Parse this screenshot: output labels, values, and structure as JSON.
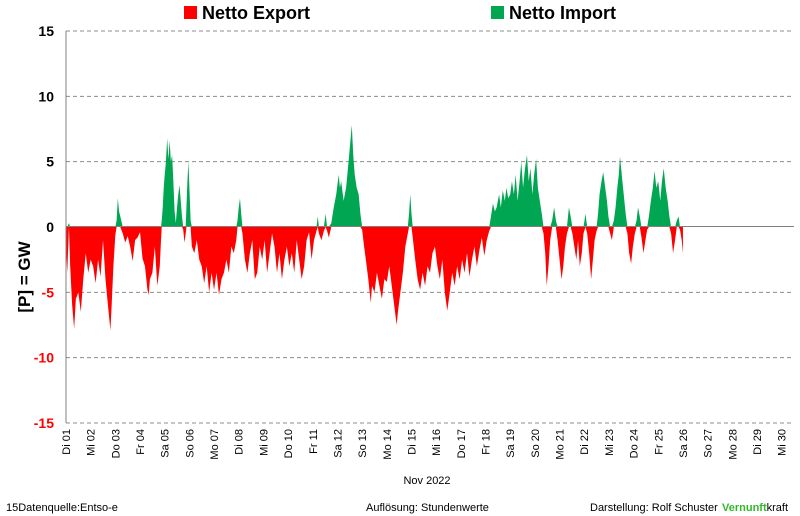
{
  "chart_data": {
    "type": "area",
    "title": "",
    "xlabel": "Nov 2022",
    "ylabel": "[P] = GW",
    "ylim": [
      -15,
      15
    ],
    "yticks": [
      15,
      10,
      5,
      0,
      -5,
      -10,
      -15
    ],
    "grid": true,
    "legend_position": "top",
    "colors": {
      "export": "#ff0000",
      "import": "#00a651",
      "negative_tick": "#ff0000",
      "positive_tick": "#000000"
    },
    "categories": [
      "Di 01",
      "Mi 02",
      "Do 03",
      "Fr 04",
      "Sa 05",
      "So 06",
      "Mo 07",
      "Di 08",
      "Mi 09",
      "Do 10",
      "Fr 11",
      "Sa 12",
      "So 13",
      "Mo 14",
      "Di 15",
      "Mi 16",
      "Do 17",
      "Fr 18",
      "Sa 19",
      "So 20",
      "Mo 21",
      "Di 22",
      "Mi 23",
      "Do 24",
      "Fr 25",
      "Sa 26",
      "So 27",
      "Mo 28",
      "Di 29",
      "Mi 30"
    ],
    "series": [
      {
        "name": "Netto Export",
        "role": "negative"
      },
      {
        "name": "Netto Import",
        "role": "positive"
      }
    ],
    "x_unit": "day of November 2022 (hourly resolution, 1.0 = 00:00 Nov 1)",
    "values": [
      [
        1.0,
        -1.5
      ],
      [
        1.05,
        -3.5
      ],
      [
        1.12,
        0.3
      ],
      [
        1.17,
        -3.0
      ],
      [
        1.25,
        -6.0
      ],
      [
        1.33,
        -7.8
      ],
      [
        1.4,
        -5.5
      ],
      [
        1.5,
        -5.0
      ],
      [
        1.6,
        -6.5
      ],
      [
        1.7,
        -4.0
      ],
      [
        1.8,
        -2.0
      ],
      [
        1.9,
        -3.5
      ],
      [
        2.0,
        -2.5
      ],
      [
        2.1,
        -3.0
      ],
      [
        2.2,
        -4.3
      ],
      [
        2.3,
        -2.5
      ],
      [
        2.4,
        -3.8
      ],
      [
        2.5,
        -1.0
      ],
      [
        2.6,
        -4.0
      ],
      [
        2.7,
        -6.0
      ],
      [
        2.8,
        -7.9
      ],
      [
        2.85,
        -6.0
      ],
      [
        2.92,
        -3.0
      ],
      [
        3.0,
        -0.6
      ],
      [
        3.05,
        0.5
      ],
      [
        3.1,
        2.2
      ],
      [
        3.15,
        1.2
      ],
      [
        3.2,
        0.8
      ],
      [
        3.3,
        -0.5
      ],
      [
        3.4,
        -1.2
      ],
      [
        3.5,
        -0.7
      ],
      [
        3.6,
        -1.5
      ],
      [
        3.7,
        -2.6
      ],
      [
        3.8,
        -1.0
      ],
      [
        3.9,
        -0.8
      ],
      [
        4.0,
        -0.4
      ],
      [
        4.1,
        -2.4
      ],
      [
        4.2,
        -3.0
      ],
      [
        4.3,
        -4.8
      ],
      [
        4.35,
        -5.2
      ],
      [
        4.4,
        -4.0
      ],
      [
        4.5,
        -3.5
      ],
      [
        4.6,
        -1.5
      ],
      [
        4.7,
        -4.5
      ],
      [
        4.8,
        -3.0
      ],
      [
        4.85,
        -1.0
      ],
      [
        4.88,
        0.5
      ],
      [
        4.92,
        1.5
      ],
      [
        4.96,
        3.0
      ],
      [
        5.0,
        4.0
      ],
      [
        5.05,
        5.0
      ],
      [
        5.1,
        6.8
      ],
      [
        5.15,
        5.2
      ],
      [
        5.2,
        6.6
      ],
      [
        5.25,
        5.0
      ],
      [
        5.3,
        5.5
      ],
      [
        5.35,
        3.5
      ],
      [
        5.4,
        1.2
      ],
      [
        5.45,
        0.3
      ],
      [
        5.5,
        1.5
      ],
      [
        5.55,
        2.5
      ],
      [
        5.6,
        3.2
      ],
      [
        5.65,
        2.0
      ],
      [
        5.7,
        0.8
      ],
      [
        5.75,
        -0.2
      ],
      [
        5.8,
        -1.2
      ],
      [
        5.85,
        -0.5
      ],
      [
        5.88,
        1.5
      ],
      [
        5.92,
        3.5
      ],
      [
        5.96,
        5.0
      ],
      [
        6.0,
        3.0
      ],
      [
        6.05,
        0.5
      ],
      [
        6.1,
        -1.5
      ],
      [
        6.2,
        -2.0
      ],
      [
        6.3,
        -1.0
      ],
      [
        6.4,
        -2.5
      ],
      [
        6.5,
        -3.0
      ],
      [
        6.6,
        -4.3
      ],
      [
        6.7,
        -3.0
      ],
      [
        6.8,
        -5.0
      ],
      [
        6.9,
        -3.5
      ],
      [
        7.0,
        -4.8
      ],
      [
        7.1,
        -3.5
      ],
      [
        7.2,
        -5.2
      ],
      [
        7.3,
        -4.0
      ],
      [
        7.4,
        -3.5
      ],
      [
        7.5,
        -2.5
      ],
      [
        7.6,
        -3.5
      ],
      [
        7.7,
        -1.5
      ],
      [
        7.8,
        -2.0
      ],
      [
        7.9,
        -1.0
      ],
      [
        7.95,
        0.5
      ],
      [
        8.0,
        1.5
      ],
      [
        8.05,
        2.2
      ],
      [
        8.1,
        1.0
      ],
      [
        8.15,
        -0.5
      ],
      [
        8.25,
        -2.5
      ],
      [
        8.35,
        -3.5
      ],
      [
        8.45,
        -2.0
      ],
      [
        8.55,
        -1.0
      ],
      [
        8.65,
        -4.0
      ],
      [
        8.75,
        -3.5
      ],
      [
        8.85,
        -1.5
      ],
      [
        8.95,
        -2.5
      ],
      [
        9.05,
        -1.0
      ],
      [
        9.15,
        -3.5
      ],
      [
        9.25,
        -2.0
      ],
      [
        9.35,
        -0.5
      ],
      [
        9.45,
        -1.5
      ],
      [
        9.55,
        -3.5
      ],
      [
        9.65,
        -2.0
      ],
      [
        9.75,
        -4.0
      ],
      [
        9.85,
        -2.5
      ],
      [
        9.95,
        -1.5
      ],
      [
        10.05,
        -3.0
      ],
      [
        10.15,
        -2.0
      ],
      [
        10.25,
        -3.5
      ],
      [
        10.35,
        -1.0
      ],
      [
        10.45,
        -2.5
      ],
      [
        10.55,
        -4.0
      ],
      [
        10.65,
        -3.0
      ],
      [
        10.75,
        -1.0
      ],
      [
        10.85,
        -0.4
      ],
      [
        10.95,
        -2.5
      ],
      [
        11.05,
        -1.0
      ],
      [
        11.15,
        -0.3
      ],
      [
        11.2,
        0.8
      ],
      [
        11.25,
        -0.5
      ],
      [
        11.35,
        -1.0
      ],
      [
        11.45,
        -0.3
      ],
      [
        11.52,
        1.0
      ],
      [
        11.58,
        -0.3
      ],
      [
        11.65,
        -0.8
      ],
      [
        11.75,
        0.3
      ],
      [
        11.85,
        1.5
      ],
      [
        11.95,
        2.5
      ],
      [
        12.05,
        4.0
      ],
      [
        12.1,
        3.0
      ],
      [
        12.15,
        3.5
      ],
      [
        12.25,
        2.0
      ],
      [
        12.35,
        3.0
      ],
      [
        12.45,
        5.0
      ],
      [
        12.52,
        6.5
      ],
      [
        12.58,
        7.8
      ],
      [
        12.64,
        5.5
      ],
      [
        12.7,
        4.0
      ],
      [
        12.78,
        3.0
      ],
      [
        12.86,
        2.5
      ],
      [
        12.93,
        1.0
      ],
      [
        13.0,
        -0.2
      ],
      [
        13.08,
        -1.5
      ],
      [
        13.15,
        -2.5
      ],
      [
        13.25,
        -4.0
      ],
      [
        13.35,
        -5.8
      ],
      [
        13.4,
        -4.5
      ],
      [
        13.5,
        -5.0
      ],
      [
        13.6,
        -3.5
      ],
      [
        13.7,
        -4.5
      ],
      [
        13.8,
        -5.5
      ],
      [
        13.9,
        -4.0
      ],
      [
        14.0,
        -4.2
      ],
      [
        14.1,
        -3.0
      ],
      [
        14.2,
        -4.5
      ],
      [
        14.3,
        -6.0
      ],
      [
        14.4,
        -7.5
      ],
      [
        14.45,
        -6.5
      ],
      [
        14.55,
        -5.0
      ],
      [
        14.65,
        -3.5
      ],
      [
        14.75,
        -1.5
      ],
      [
        14.85,
        -0.5
      ],
      [
        14.9,
        1.0
      ],
      [
        14.95,
        2.5
      ],
      [
        15.0,
        1.0
      ],
      [
        15.05,
        -0.8
      ],
      [
        15.15,
        -2.5
      ],
      [
        15.25,
        -4.0
      ],
      [
        15.35,
        -4.8
      ],
      [
        15.45,
        -3.5
      ],
      [
        15.55,
        -4.5
      ],
      [
        15.65,
        -3.0
      ],
      [
        15.75,
        -3.5
      ],
      [
        15.85,
        -2.0
      ],
      [
        15.95,
        -1.5
      ],
      [
        16.05,
        -3.0
      ],
      [
        16.15,
        -4.0
      ],
      [
        16.25,
        -2.5
      ],
      [
        16.35,
        -5.0
      ],
      [
        16.45,
        -6.4
      ],
      [
        16.55,
        -5.0
      ],
      [
        16.65,
        -3.5
      ],
      [
        16.75,
        -4.5
      ],
      [
        16.85,
        -3.0
      ],
      [
        16.95,
        -4.0
      ],
      [
        17.05,
        -2.5
      ],
      [
        17.15,
        -3.5
      ],
      [
        17.25,
        -2.0
      ],
      [
        17.35,
        -3.8
      ],
      [
        17.45,
        -2.5
      ],
      [
        17.55,
        -1.5
      ],
      [
        17.65,
        -3.0
      ],
      [
        17.75,
        -1.8
      ],
      [
        17.85,
        -0.8
      ],
      [
        17.95,
        -2.2
      ],
      [
        18.05,
        -1.0
      ],
      [
        18.15,
        -0.3
      ],
      [
        18.22,
        0.8
      ],
      [
        18.3,
        1.8
      ],
      [
        18.38,
        1.2
      ],
      [
        18.45,
        1.5
      ],
      [
        18.55,
        2.5
      ],
      [
        18.62,
        1.5
      ],
      [
        18.7,
        2.8
      ],
      [
        18.78,
        2.0
      ],
      [
        18.85,
        3.0
      ],
      [
        18.92,
        2.2
      ],
      [
        19.0,
        2.5
      ],
      [
        19.07,
        3.5
      ],
      [
        19.15,
        2.5
      ],
      [
        19.22,
        4.0
      ],
      [
        19.3,
        2.0
      ],
      [
        19.38,
        3.5
      ],
      [
        19.45,
        5.0
      ],
      [
        19.52,
        3.0
      ],
      [
        19.6,
        4.5
      ],
      [
        19.68,
        5.5
      ],
      [
        19.75,
        3.5
      ],
      [
        19.82,
        4.5
      ],
      [
        19.9,
        2.5
      ],
      [
        19.97,
        4.0
      ],
      [
        20.05,
        5.2
      ],
      [
        20.12,
        3.0
      ],
      [
        20.2,
        2.0
      ],
      [
        20.28,
        1.0
      ],
      [
        20.35,
        -0.5
      ],
      [
        20.42,
        -2.0
      ],
      [
        20.48,
        -4.5
      ],
      [
        20.55,
        -3.0
      ],
      [
        20.62,
        -1.0
      ],
      [
        20.7,
        0.5
      ],
      [
        20.78,
        1.5
      ],
      [
        20.85,
        0.5
      ],
      [
        20.92,
        -1.0
      ],
      [
        21.0,
        -2.5
      ],
      [
        21.08,
        -4.0
      ],
      [
        21.15,
        -3.0
      ],
      [
        21.22,
        -1.5
      ],
      [
        21.3,
        -0.5
      ],
      [
        21.38,
        1.5
      ],
      [
        21.45,
        0.8
      ],
      [
        21.52,
        -0.5
      ],
      [
        21.6,
        -1.5
      ],
      [
        21.68,
        -2.5
      ],
      [
        21.75,
        -1.0
      ],
      [
        21.82,
        -3.0
      ],
      [
        21.9,
        -2.0
      ],
      [
        21.97,
        -0.5
      ],
      [
        22.05,
        1.0
      ],
      [
        22.12,
        -0.5
      ],
      [
        22.2,
        -2.0
      ],
      [
        22.28,
        -4.0
      ],
      [
        22.35,
        -2.5
      ],
      [
        22.42,
        -1.0
      ],
      [
        22.5,
        -0.3
      ],
      [
        22.56,
        1.0
      ],
      [
        22.62,
        2.5
      ],
      [
        22.7,
        3.5
      ],
      [
        22.77,
        4.2
      ],
      [
        22.85,
        3.0
      ],
      [
        22.92,
        2.0
      ],
      [
        22.98,
        0.8
      ],
      [
        23.05,
        -0.5
      ],
      [
        23.12,
        -1.0
      ],
      [
        23.2,
        0.5
      ],
      [
        23.27,
        1.5
      ],
      [
        23.34,
        3.0
      ],
      [
        23.4,
        4.0
      ],
      [
        23.45,
        5.4
      ],
      [
        23.52,
        4.0
      ],
      [
        23.6,
        2.5
      ],
      [
        23.68,
        1.0
      ],
      [
        23.75,
        -0.5
      ],
      [
        23.82,
        -2.0
      ],
      [
        23.9,
        -2.8
      ],
      [
        23.97,
        -1.5
      ],
      [
        24.05,
        -0.5
      ],
      [
        24.12,
        0.5
      ],
      [
        24.18,
        1.5
      ],
      [
        24.25,
        0.8
      ],
      [
        24.32,
        -0.8
      ],
      [
        24.4,
        -2.0
      ],
      [
        24.48,
        -1.0
      ],
      [
        24.55,
        -0.2
      ],
      [
        24.62,
        0.8
      ],
      [
        24.7,
        2.0
      ],
      [
        24.78,
        3.0
      ],
      [
        24.85,
        4.3
      ],
      [
        24.92,
        3.0
      ],
      [
        25.0,
        3.5
      ],
      [
        25.08,
        2.0
      ],
      [
        25.15,
        3.5
      ],
      [
        25.22,
        4.5
      ],
      [
        25.3,
        3.0
      ],
      [
        25.38,
        2.0
      ],
      [
        25.45,
        0.8
      ],
      [
        25.52,
        -0.5
      ],
      [
        25.6,
        -2.0
      ],
      [
        25.68,
        -1.0
      ],
      [
        25.75,
        0.5
      ],
      [
        25.82,
        0.8
      ],
      [
        25.88,
        -0.2
      ],
      [
        25.95,
        -1.0
      ],
      [
        26.0,
        -2.0
      ]
    ]
  },
  "legend": {
    "export_label": "Netto Export",
    "import_label": "Netto Import"
  },
  "footer": {
    "source": "15Datenquelle:Entso-e",
    "resolution": "Auflösung: Stundenwerte",
    "author": "Darstellung:  Rolf Schuster",
    "brand_part1": "Vernunft",
    "brand_part2": "kraft"
  }
}
